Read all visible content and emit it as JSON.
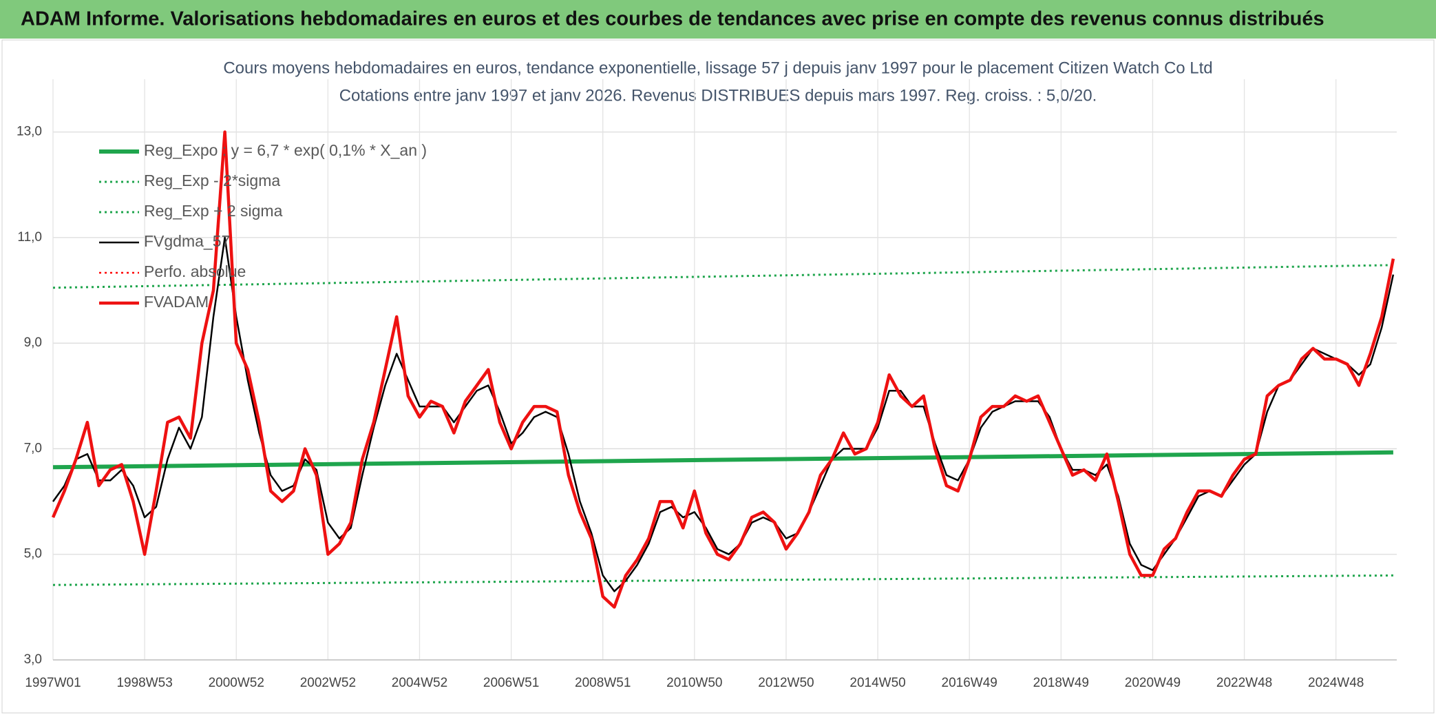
{
  "page_title": "ADAM Informe. Valorisations hebdomadaires en euros et des courbes de tendances avec prise en compte des revenus connus distribués",
  "chart_data": {
    "type": "line",
    "title": "Cours moyens hebdomadaires en euros, tendance exponentielle, lissage 57 j depuis janv 1997 pour le placement Citizen Watch Co Ltd",
    "subtitle": "Cotations entre janv 1997 et janv 2026. Revenus DISTRIBUES depuis mars 1997. Reg. croiss. : 5,0/20.",
    "x": [
      0,
      13,
      26,
      39,
      52,
      65,
      78,
      91,
      104,
      117,
      130,
      143,
      156,
      169,
      182,
      195,
      208,
      221,
      234,
      247,
      260,
      273,
      286,
      299,
      312,
      325,
      338,
      351,
      364,
      377,
      390,
      403,
      416,
      429,
      442,
      455,
      468,
      481,
      494,
      507,
      520,
      533,
      546,
      559,
      572,
      585,
      598,
      611,
      624,
      637,
      650,
      663,
      676,
      689,
      702,
      715,
      728,
      741,
      754,
      767,
      780,
      793,
      806,
      819,
      832,
      845,
      858,
      871,
      884,
      897,
      910,
      923,
      936,
      949,
      962,
      975,
      988,
      1001,
      1014,
      1027,
      1040,
      1053,
      1066,
      1079,
      1092,
      1105,
      1118,
      1131,
      1144,
      1157,
      1170,
      1183,
      1196,
      1209,
      1222,
      1235,
      1248,
      1261,
      1274,
      1287,
      1300,
      1313,
      1326,
      1339,
      1352,
      1365,
      1378,
      1391,
      1404,
      1417,
      1430,
      1443,
      1456,
      1469,
      1482,
      1495,
      1508,
      1521
    ],
    "xlim": [
      0,
      1525
    ],
    "xticks": [
      {
        "value": 0,
        "label": "1997W01"
      },
      {
        "value": 104,
        "label": "1998W53"
      },
      {
        "value": 208,
        "label": "2000W52"
      },
      {
        "value": 312,
        "label": "2002W52"
      },
      {
        "value": 416,
        "label": "2004W52"
      },
      {
        "value": 520,
        "label": "2006W51"
      },
      {
        "value": 624,
        "label": "2008W51"
      },
      {
        "value": 728,
        "label": "2010W50"
      },
      {
        "value": 832,
        "label": "2012W50"
      },
      {
        "value": 936,
        "label": "2014W50"
      },
      {
        "value": 1040,
        "label": "2016W49"
      },
      {
        "value": 1144,
        "label": "2018W49"
      },
      {
        "value": 1248,
        "label": "2020W49"
      },
      {
        "value": 1352,
        "label": "2022W48"
      },
      {
        "value": 1456,
        "label": "2024W48"
      }
    ],
    "ylim": [
      3,
      14
    ],
    "yticks": [
      {
        "value": 3,
        "label": "3,0"
      },
      {
        "value": 5,
        "label": "5,0"
      },
      {
        "value": 7,
        "label": "7,0"
      },
      {
        "value": 9,
        "label": "9,0"
      },
      {
        "value": 11,
        "label": "11,0"
      },
      {
        "value": 13,
        "label": "13,0"
      }
    ],
    "grid": true,
    "legend": "top-left",
    "series": [
      {
        "name": "Reg_Expo : y = 6,7 * exp( 0,1% *  X_an )",
        "color": "#1fa54d",
        "style": "solid",
        "width": 6,
        "x": [
          0,
          1521
        ],
        "values": [
          6.65,
          6.93
        ]
      },
      {
        "name": "Reg_Exp - 2*sigma",
        "color": "#1fa54d",
        "style": "dotted",
        "width": 3,
        "x": [
          0,
          1521
        ],
        "values": [
          4.42,
          4.6
        ]
      },
      {
        "name": "Reg_Exp + 2 sigma",
        "color": "#1fa54d",
        "style": "dotted",
        "width": 3,
        "x": [
          0,
          1521
        ],
        "values": [
          10.05,
          10.48
        ]
      },
      {
        "name": "FVgdma_57",
        "color": "#000000",
        "style": "solid",
        "width": 2.5,
        "values": [
          6.0,
          6.3,
          6.8,
          6.9,
          6.4,
          6.4,
          6.6,
          6.3,
          5.7,
          5.9,
          6.8,
          7.4,
          7.0,
          7.6,
          9.5,
          11.0,
          9.5,
          8.3,
          7.3,
          6.5,
          6.2,
          6.3,
          6.8,
          6.6,
          5.6,
          5.3,
          5.5,
          6.5,
          7.4,
          8.2,
          8.8,
          8.3,
          7.8,
          7.8,
          7.8,
          7.5,
          7.8,
          8.1,
          8.2,
          7.7,
          7.1,
          7.3,
          7.6,
          7.7,
          7.6,
          6.9,
          6.0,
          5.4,
          4.6,
          4.3,
          4.5,
          4.8,
          5.2,
          5.8,
          5.9,
          5.7,
          5.8,
          5.5,
          5.1,
          5.0,
          5.2,
          5.6,
          5.7,
          5.6,
          5.3,
          5.4,
          5.8,
          6.3,
          6.8,
          7.0,
          7.0,
          7.0,
          7.4,
          8.1,
          8.1,
          7.8,
          7.8,
          7.1,
          6.5,
          6.4,
          6.8,
          7.4,
          7.7,
          7.8,
          7.9,
          7.9,
          7.9,
          7.6,
          7.0,
          6.6,
          6.6,
          6.5,
          6.7,
          6.1,
          5.2,
          4.8,
          4.7,
          5.0,
          5.3,
          5.7,
          6.1,
          6.2,
          6.1,
          6.4,
          6.7,
          6.9,
          7.7,
          8.2,
          8.3,
          8.6,
          8.9,
          8.8,
          8.7,
          8.6,
          8.4,
          8.6,
          9.3,
          10.3
        ]
      },
      {
        "name": "Perfo. absolue",
        "color": "#ff0000",
        "style": "dotted",
        "width": 2.5,
        "x": [],
        "values": []
      },
      {
        "name": "FVADAM",
        "color": "#ee1111",
        "style": "solid",
        "width": 4.5,
        "values": [
          5.7,
          6.2,
          6.8,
          7.5,
          6.3,
          6.6,
          6.7,
          6.0,
          5.0,
          6.2,
          7.5,
          7.6,
          7.2,
          9.0,
          10.0,
          13.0,
          9.0,
          8.5,
          7.5,
          6.2,
          6.0,
          6.2,
          7.0,
          6.5,
          5.0,
          5.2,
          5.6,
          6.8,
          7.5,
          8.5,
          9.5,
          8.0,
          7.6,
          7.9,
          7.8,
          7.3,
          7.9,
          8.2,
          8.5,
          7.5,
          7.0,
          7.5,
          7.8,
          7.8,
          7.7,
          6.5,
          5.8,
          5.3,
          4.2,
          4.0,
          4.6,
          4.9,
          5.3,
          6.0,
          6.0,
          5.5,
          6.2,
          5.4,
          5.0,
          4.9,
          5.2,
          5.7,
          5.8,
          5.6,
          5.1,
          5.4,
          5.8,
          6.5,
          6.8,
          7.3,
          6.9,
          7.0,
          7.5,
          8.4,
          8.0,
          7.8,
          8.0,
          7.0,
          6.3,
          6.2,
          6.8,
          7.6,
          7.8,
          7.8,
          8.0,
          7.9,
          8.0,
          7.5,
          7.0,
          6.5,
          6.6,
          6.4,
          6.9,
          6.0,
          5.0,
          4.6,
          4.6,
          5.1,
          5.3,
          5.8,
          6.2,
          6.2,
          6.1,
          6.5,
          6.8,
          6.9,
          8.0,
          8.2,
          8.3,
          8.7,
          8.9,
          8.7,
          8.7,
          8.6,
          8.2,
          8.8,
          9.5,
          10.6
        ]
      }
    ]
  }
}
